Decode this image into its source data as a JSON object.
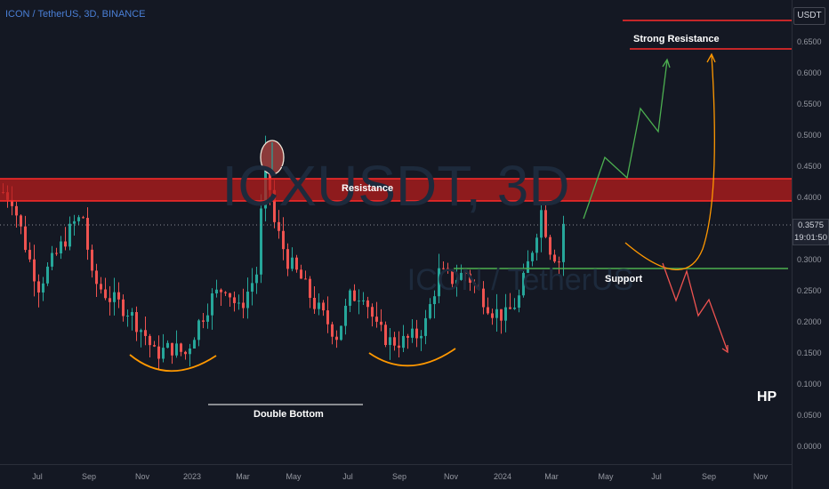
{
  "header": {
    "symbol_line": "ICON / TetherUS, 3D, BINANCE"
  },
  "watermark": {
    "main": "ICXUSDT, 3D",
    "sub": "ICON / TetherUS"
  },
  "axis": {
    "currency": "USDT",
    "current_price": "0.3575",
    "countdown": "19:01:50"
  },
  "annotations": {
    "resistance": "Resistance",
    "strong_resistance": "Strong Resistance",
    "support": "Support",
    "double_bottom": "Double Bottom",
    "hp": "HP"
  },
  "colors": {
    "background": "#141823",
    "up_candle": "#26a69a",
    "down_candle": "#ef5350",
    "resistance_zone": "#b71c1c",
    "support_line": "#4caf50",
    "projection_up": "#4caf50",
    "projection_down": "#ef5350",
    "curve": "#ff9800"
  },
  "chart_data": {
    "type": "candlestick",
    "title": "ICON / TetherUS, 3D, BINANCE",
    "x_tick_labels": [
      "Jul",
      "Sep",
      "Nov",
      "2023",
      "Mar",
      "May",
      "Jul",
      "Sep",
      "Nov",
      "2024",
      "Mar",
      "May",
      "Jul",
      "Sep",
      "Nov"
    ],
    "y_tick_labels": [
      "0.6500",
      "0.6000",
      "0.5500",
      "0.5000",
      "0.4500",
      "0.4000",
      "0.3500",
      "0.3000",
      "0.2500",
      "0.2000",
      "0.1500",
      "0.1000",
      "0.0500",
      "0.0000"
    ],
    "ylim": [
      -0.01,
      0.69
    ],
    "price_path": [
      {
        "x": 0,
        "y": 0.41
      },
      {
        "x": 2,
        "y": 0.4
      },
      {
        "x": 6,
        "y": 0.3
      },
      {
        "x": 8,
        "y": 0.26
      },
      {
        "x": 12,
        "y": 0.31
      },
      {
        "x": 16,
        "y": 0.36
      },
      {
        "x": 18,
        "y": 0.37
      },
      {
        "x": 20,
        "y": 0.27
      },
      {
        "x": 24,
        "y": 0.24
      },
      {
        "x": 28,
        "y": 0.22
      },
      {
        "x": 32,
        "y": 0.18
      },
      {
        "x": 34,
        "y": 0.15
      },
      {
        "x": 38,
        "y": 0.16
      },
      {
        "x": 41,
        "y": 0.15
      },
      {
        "x": 44,
        "y": 0.2
      },
      {
        "x": 47,
        "y": 0.24
      },
      {
        "x": 50,
        "y": 0.26
      },
      {
        "x": 53,
        "y": 0.22
      },
      {
        "x": 57,
        "y": 0.28
      },
      {
        "x": 59,
        "y": 0.47
      },
      {
        "x": 61,
        "y": 0.36
      },
      {
        "x": 64,
        "y": 0.3
      },
      {
        "x": 67,
        "y": 0.27
      },
      {
        "x": 70,
        "y": 0.23
      },
      {
        "x": 73,
        "y": 0.2
      },
      {
        "x": 75,
        "y": 0.18
      },
      {
        "x": 78,
        "y": 0.24
      },
      {
        "x": 81,
        "y": 0.25
      },
      {
        "x": 84,
        "y": 0.19
      },
      {
        "x": 87,
        "y": 0.17
      },
      {
        "x": 90,
        "y": 0.17
      },
      {
        "x": 93,
        "y": 0.18
      },
      {
        "x": 95,
        "y": 0.2
      },
      {
        "x": 98,
        "y": 0.28
      },
      {
        "x": 101,
        "y": 0.27
      },
      {
        "x": 104,
        "y": 0.28
      },
      {
        "x": 107,
        "y": 0.25
      },
      {
        "x": 110,
        "y": 0.22
      },
      {
        "x": 113,
        "y": 0.21
      },
      {
        "x": 116,
        "y": 0.24
      },
      {
        "x": 119,
        "y": 0.32
      },
      {
        "x": 121,
        "y": 0.38
      },
      {
        "x": 123,
        "y": 0.32
      },
      {
        "x": 125,
        "y": 0.3
      },
      {
        "x": 126,
        "y": 0.36
      }
    ],
    "zones": [
      {
        "label": "Resistance",
        "from": 0.395,
        "to": 0.432
      },
      {
        "label": "Strong Resistance",
        "level": 0.64
      },
      {
        "label": "Support",
        "level": 0.285
      }
    ],
    "annotations": [
      "Resistance",
      "Strong Resistance",
      "Support",
      "Double Bottom",
      "HP"
    ]
  }
}
